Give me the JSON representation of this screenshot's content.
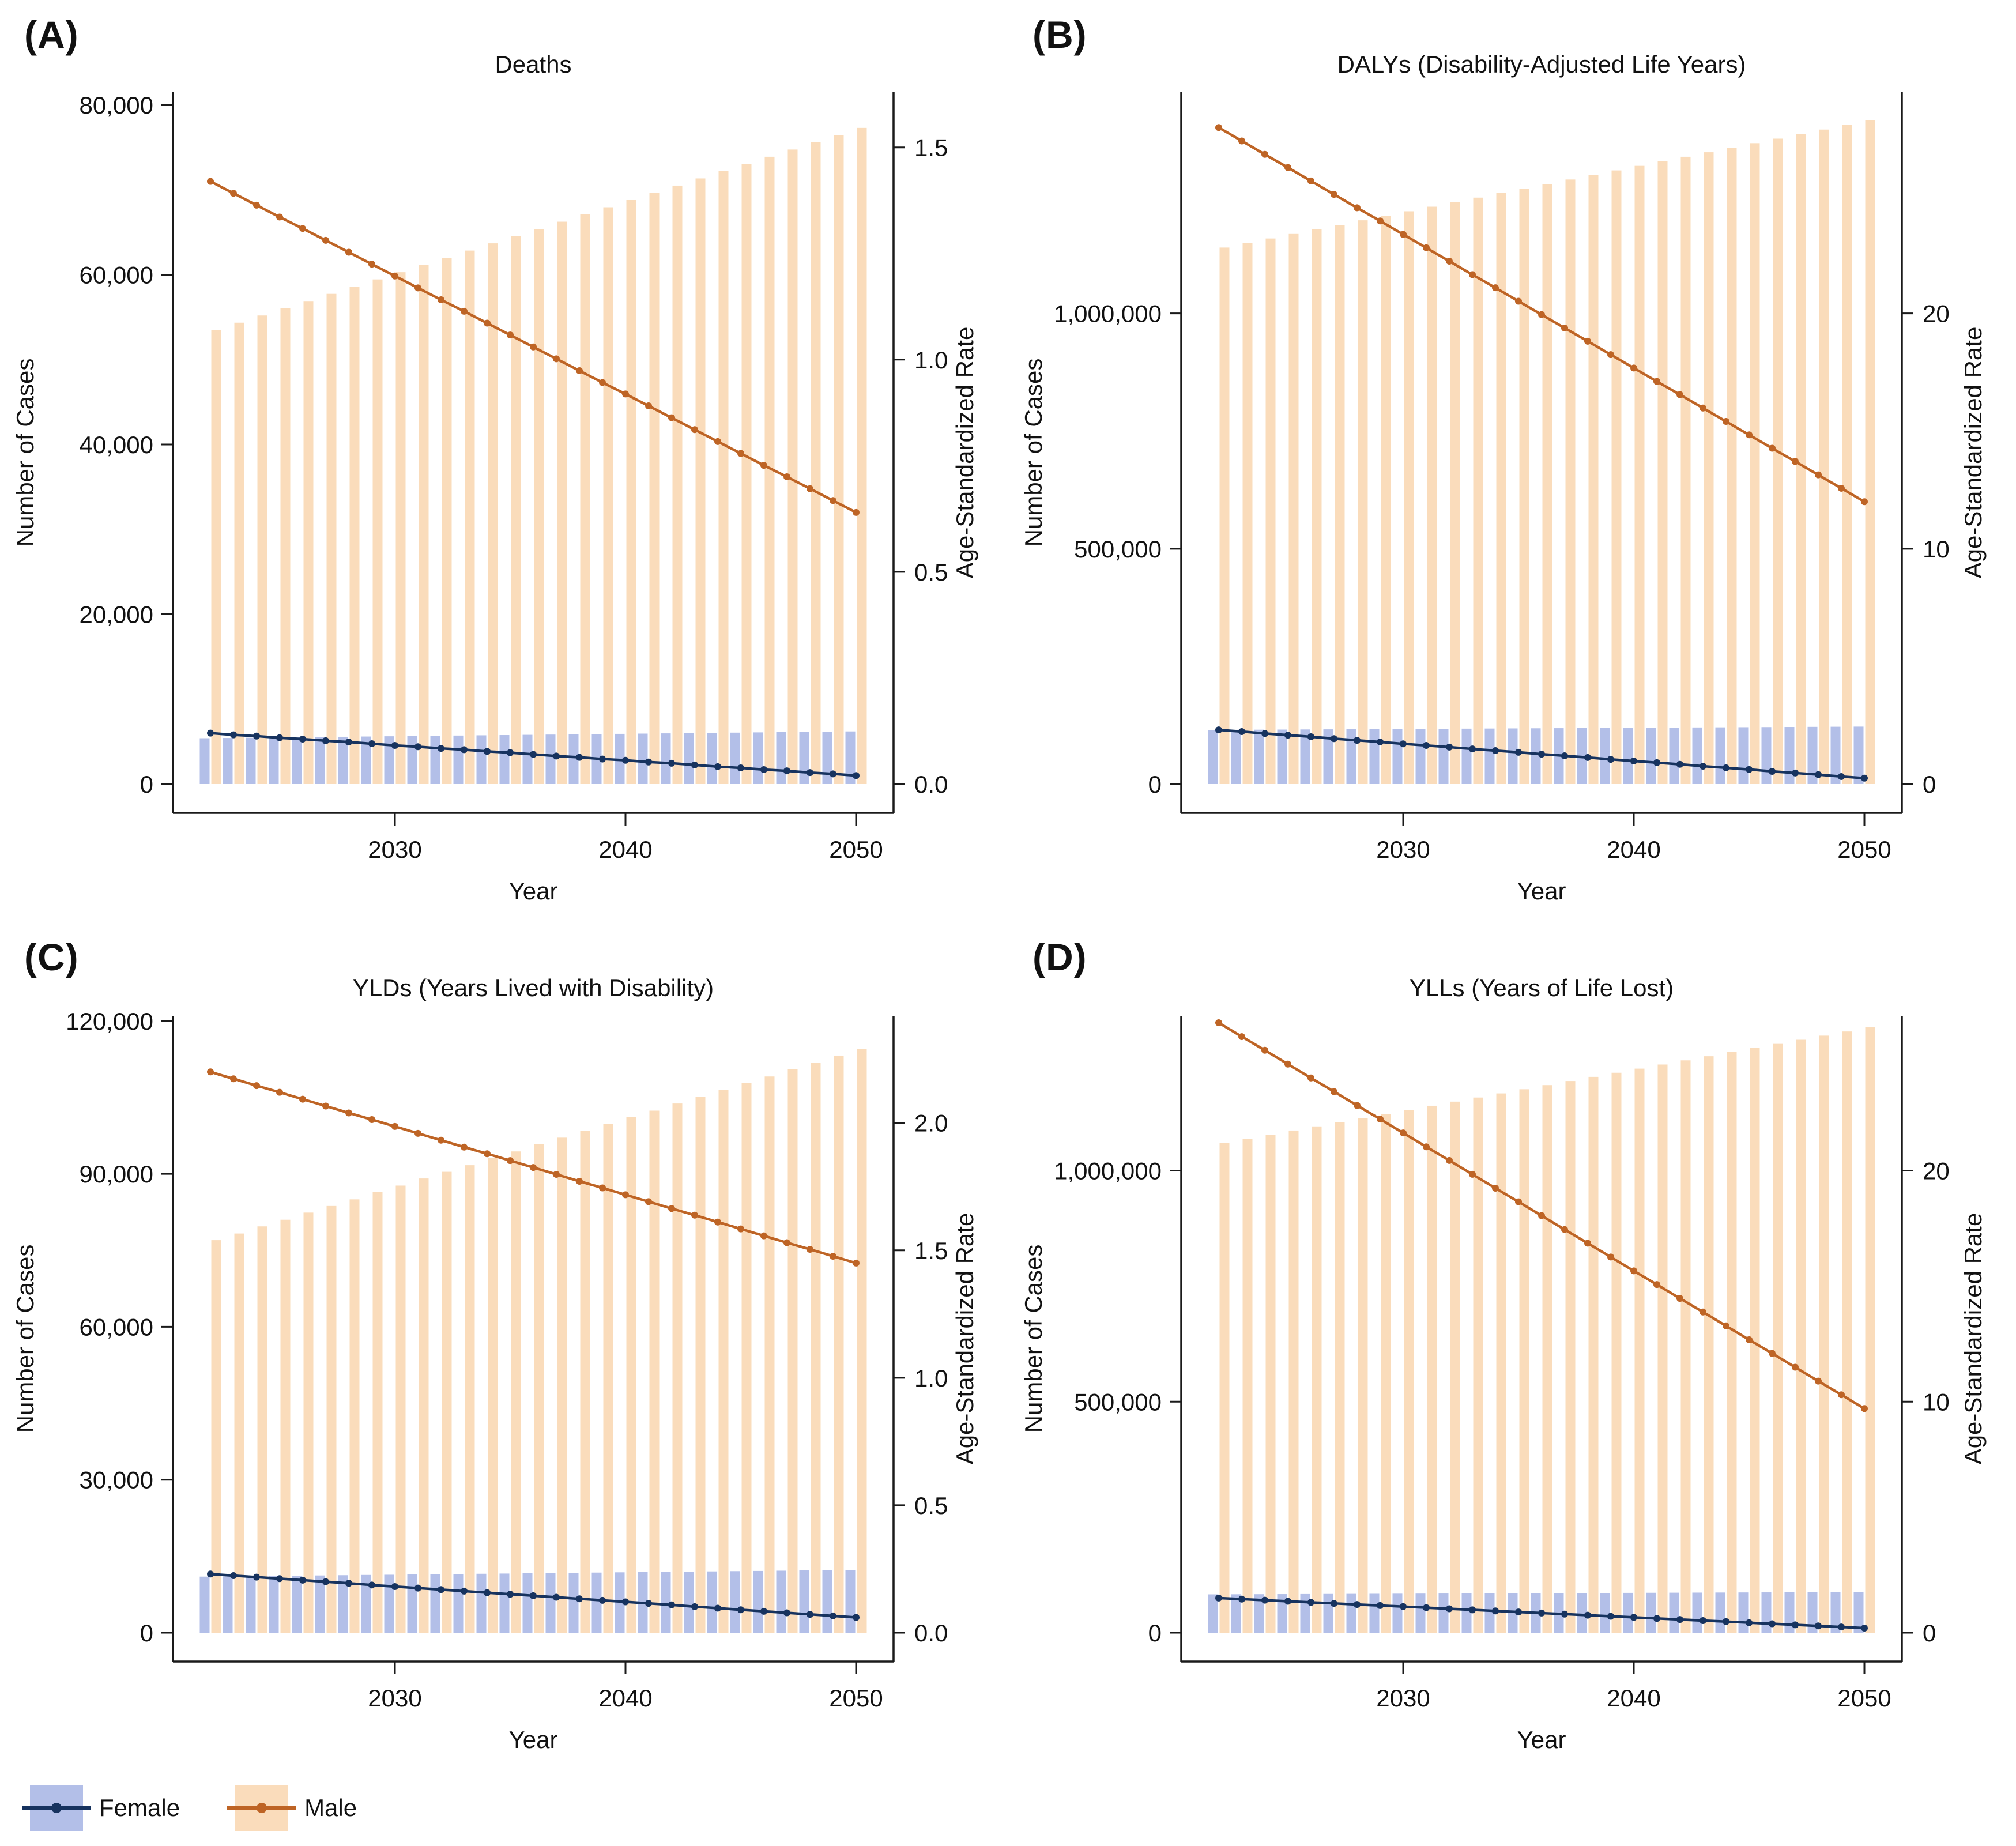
{
  "colors": {
    "female_bar": "#b3bfe8",
    "male_bar": "#fadcbb",
    "female_line": "#17335f",
    "male_line": "#be6425",
    "axis": "#1a1a1a",
    "background": "#ffffff"
  },
  "legend": {
    "items": [
      {
        "label": "Female",
        "box_color": "#b3bfe8",
        "line_color": "#17335f"
      },
      {
        "label": "Male",
        "box_color": "#fadcbb",
        "line_color": "#be6425"
      }
    ]
  },
  "chart_data": [
    {
      "id": "deaths",
      "label": "(A)",
      "title": "Deaths",
      "type": "bar+line-dual-axis",
      "xlabel": "Year",
      "ylabel_left": "Number of Cases",
      "ylabel_right": "Age-Standardized Rate",
      "legend_position": "bottom-left",
      "grid": false,
      "years": [
        2022,
        2023,
        2024,
        2025,
        2026,
        2027,
        2028,
        2029,
        2030,
        2031,
        2032,
        2033,
        2034,
        2035,
        2036,
        2037,
        2038,
        2039,
        2040,
        2041,
        2042,
        2043,
        2044,
        2045,
        2046,
        2047,
        2048,
        2049,
        2050
      ],
      "bars": {
        "axis": "left",
        "series": [
          {
            "name": "Female",
            "values": [
              5400,
              5429,
              5457,
              5486,
              5514,
              5543,
              5571,
              5600,
              5629,
              5657,
              5686,
              5714,
              5743,
              5771,
              5800,
              5829,
              5857,
              5886,
              5914,
              5943,
              5971,
              6000,
              6029,
              6057,
              6086,
              6114,
              6143,
              6171,
              6200
            ]
          },
          {
            "name": "Male",
            "values": [
              53500,
              54350,
              55200,
              56050,
              56900,
              57750,
              58600,
              59450,
              60300,
              61150,
              62000,
              62850,
              63700,
              64550,
              65400,
              66250,
              67100,
              67950,
              68800,
              69650,
              70500,
              71350,
              72200,
              73050,
              73900,
              74750,
              75600,
              76450,
              77300
            ]
          }
        ]
      },
      "lines": {
        "axis": "right",
        "series": [
          {
            "name": "Female",
            "values": [
              0.12,
              0.116,
              0.113,
              0.109,
              0.106,
              0.102,
              0.099,
              0.095,
              0.091,
              0.088,
              0.084,
              0.081,
              0.077,
              0.074,
              0.07,
              0.066,
              0.063,
              0.059,
              0.056,
              0.052,
              0.049,
              0.045,
              0.041,
              0.038,
              0.034,
              0.031,
              0.027,
              0.024,
              0.02
            ]
          },
          {
            "name": "Male",
            "values": [
              1.42,
              1.392,
              1.364,
              1.336,
              1.309,
              1.281,
              1.253,
              1.225,
              1.197,
              1.169,
              1.141,
              1.114,
              1.086,
              1.058,
              1.03,
              1.002,
              0.974,
              0.946,
              0.919,
              0.891,
              0.863,
              0.835,
              0.807,
              0.779,
              0.751,
              0.724,
              0.696,
              0.668,
              0.64
            ]
          }
        ]
      },
      "axis_left": {
        "ticks": [
          0,
          20000,
          40000,
          60000,
          80000
        ],
        "labels": [
          "0",
          "20,000",
          "40,000",
          "60,000",
          "80,000"
        ],
        "scale_top": 81500
      },
      "axis_right": {
        "ticks": [
          0,
          0.5,
          1.0,
          1.5
        ],
        "labels": [
          "0.0",
          "0.5",
          "1.0",
          "1.5"
        ],
        "scale_top": 1.63
      },
      "axis_x": {
        "ticks": [
          2030,
          2040,
          2050
        ],
        "labels": [
          "2030",
          "2040",
          "2050"
        ]
      }
    },
    {
      "id": "dalys",
      "label": "(B)",
      "title": "DALYs (Disability-Adjusted Life Years)",
      "type": "bar+line-dual-axis",
      "xlabel": "Year",
      "ylabel_left": "Number of Cases",
      "ylabel_right": "Age-Standardized Rate",
      "legend_position": "bottom-left",
      "grid": false,
      "years": [
        2022,
        2023,
        2024,
        2025,
        2026,
        2027,
        2028,
        2029,
        2030,
        2031,
        2032,
        2033,
        2034,
        2035,
        2036,
        2037,
        2038,
        2039,
        2040,
        2041,
        2042,
        2043,
        2044,
        2045,
        2046,
        2047,
        2048,
        2049,
        2050
      ],
      "bars": {
        "axis": "left",
        "series": [
          {
            "name": "Female",
            "values": [
              115000,
              115250,
              115500,
              115750,
              116000,
              116250,
              116500,
              116750,
              117000,
              117250,
              117500,
              117750,
              118000,
              118250,
              118500,
              118750,
              119000,
              119250,
              119500,
              119750,
              120000,
              120250,
              120500,
              120750,
              121000,
              121250,
              121500,
              121750,
              122000
            ]
          },
          {
            "name": "Male",
            "values": [
              1140000,
              1149600,
              1159300,
              1168900,
              1178600,
              1188200,
              1197900,
              1207500,
              1217100,
              1226800,
              1236400,
              1246100,
              1255700,
              1265400,
              1275000,
              1284600,
              1294300,
              1303900,
              1313600,
              1323200,
              1332900,
              1342500,
              1352100,
              1361800,
              1371400,
              1381100,
              1390700,
              1400400,
              1410000
            ]
          }
        ]
      },
      "lines": {
        "axis": "right",
        "series": [
          {
            "name": "Female",
            "values": [
              2.3,
              2.23,
              2.15,
              2.08,
              2.01,
              1.93,
              1.86,
              1.79,
              1.71,
              1.64,
              1.57,
              1.49,
              1.42,
              1.35,
              1.27,
              1.2,
              1.13,
              1.05,
              0.98,
              0.91,
              0.84,
              0.76,
              0.69,
              0.62,
              0.54,
              0.47,
              0.4,
              0.32,
              0.25
            ]
          },
          {
            "name": "Male",
            "values": [
              27.9,
              27.33,
              26.76,
              26.2,
              25.63,
              25.06,
              24.49,
              23.93,
              23.36,
              22.79,
              22.22,
              21.65,
              21.09,
              20.52,
              19.95,
              19.38,
              18.82,
              18.25,
              17.68,
              17.11,
              16.55,
              15.98,
              15.41,
              14.84,
              14.27,
              13.71,
              13.14,
              12.57,
              12.0
            ]
          }
        ]
      },
      "axis_left": {
        "ticks": [
          0,
          500000,
          1000000
        ],
        "labels": [
          "0",
          "500,000",
          "1,000,000"
        ],
        "scale_top": 1470000
      },
      "axis_right": {
        "ticks": [
          0,
          10,
          20
        ],
        "labels": [
          "0",
          "10",
          "20"
        ],
        "scale_top": 29.4
      },
      "axis_x": {
        "ticks": [
          2030,
          2040,
          2050
        ],
        "labels": [
          "2030",
          "2040",
          "2050"
        ]
      }
    },
    {
      "id": "ylds",
      "label": "(C)",
      "title": "YLDs (Years Lived with Disability)",
      "type": "bar+line-dual-axis",
      "xlabel": "Year",
      "ylabel_left": "Number of Cases",
      "ylabel_right": "Age-Standardized Rate",
      "legend_position": "bottom-left",
      "grid": false,
      "years": [
        2022,
        2023,
        2024,
        2025,
        2026,
        2027,
        2028,
        2029,
        2030,
        2031,
        2032,
        2033,
        2034,
        2035,
        2036,
        2037,
        2038,
        2039,
        2040,
        2041,
        2042,
        2043,
        2044,
        2045,
        2046,
        2047,
        2048,
        2049,
        2050
      ],
      "bars": {
        "axis": "left",
        "series": [
          {
            "name": "Female",
            "values": [
              11000,
              11050,
              11090,
              11140,
              11190,
              11230,
              11280,
              11330,
              11370,
              11420,
              11460,
              11510,
              11560,
              11600,
              11650,
              11700,
              11740,
              11790,
              11840,
              11880,
              11930,
              11980,
              12020,
              12070,
              12110,
              12160,
              12210,
              12250,
              12300
            ]
          },
          {
            "name": "Male",
            "values": [
              77000,
              78300,
              79700,
              81000,
              82400,
              83700,
              85000,
              86400,
              87700,
              89100,
              90400,
              91700,
              93100,
              94400,
              95800,
              97100,
              98400,
              99800,
              101100,
              102400,
              103800,
              105100,
              106500,
              107800,
              109100,
              110500,
              111800,
              113200,
              114500
            ]
          }
        ]
      },
      "lines": {
        "axis": "right",
        "series": [
          {
            "name": "Female",
            "values": [
              0.23,
              0.224,
              0.218,
              0.212,
              0.206,
              0.2,
              0.194,
              0.187,
              0.181,
              0.175,
              0.169,
              0.163,
              0.157,
              0.151,
              0.145,
              0.139,
              0.133,
              0.127,
              0.121,
              0.115,
              0.109,
              0.102,
              0.096,
              0.09,
              0.084,
              0.078,
              0.072,
              0.066,
              0.06
            ]
          },
          {
            "name": "Male",
            "values": [
              2.2,
              2.173,
              2.146,
              2.12,
              2.093,
              2.066,
              2.039,
              2.013,
              1.986,
              1.959,
              1.932,
              1.905,
              1.879,
              1.852,
              1.825,
              1.798,
              1.771,
              1.745,
              1.718,
              1.691,
              1.664,
              1.638,
              1.611,
              1.584,
              1.557,
              1.53,
              1.504,
              1.477,
              1.45
            ]
          }
        ]
      },
      "axis_left": {
        "ticks": [
          0,
          30000,
          60000,
          90000,
          120000
        ],
        "labels": [
          "0",
          "30,000",
          "60,000",
          "90,000",
          "120,000"
        ],
        "scale_top": 121000
      },
      "axis_right": {
        "ticks": [
          0,
          0.5,
          1.0,
          1.5,
          2.0
        ],
        "labels": [
          "0.0",
          "0.5",
          "1.0",
          "1.5",
          "2.0"
        ],
        "scale_top": 2.42
      },
      "axis_x": {
        "ticks": [
          2030,
          2040,
          2050
        ],
        "labels": [
          "2030",
          "2040",
          "2050"
        ]
      }
    },
    {
      "id": "ylls",
      "label": "(D)",
      "title": "YLLs (Years of Life Lost)",
      "type": "bar+line-dual-axis",
      "xlabel": "Year",
      "ylabel_left": "Number of Cases",
      "ylabel_right": "Age-Standardized Rate",
      "legend_position": "bottom-left",
      "grid": false,
      "years": [
        2022,
        2023,
        2024,
        2025,
        2026,
        2027,
        2028,
        2029,
        2030,
        2031,
        2032,
        2033,
        2034,
        2035,
        2036,
        2037,
        2038,
        2039,
        2040,
        2041,
        2042,
        2043,
        2044,
        2045,
        2046,
        2047,
        2048,
        2049,
        2050
      ],
      "bars": {
        "axis": "left",
        "series": [
          {
            "name": "Female",
            "values": [
              83000,
              83180,
              83360,
              83540,
              83710,
              83890,
              84070,
              84250,
              84430,
              84610,
              84790,
              84960,
              85140,
              85320,
              85500,
              85680,
              85860,
              86040,
              86210,
              86390,
              86570,
              86750,
              86930,
              87110,
              87290,
              87460,
              87640,
              87820,
              88000
            ]
          },
          {
            "name": "Male",
            "values": [
              1060000,
              1068900,
              1077900,
              1086800,
              1095700,
              1104600,
              1113600,
              1122500,
              1131400,
              1140400,
              1149300,
              1158200,
              1167100,
              1176100,
              1185000,
              1193900,
              1202900,
              1211800,
              1220700,
              1229600,
              1238600,
              1247500,
              1256400,
              1265400,
              1274300,
              1283200,
              1292100,
              1301100,
              1310000
            ]
          }
        ]
      },
      "lines": {
        "axis": "right",
        "series": [
          {
            "name": "Female",
            "values": [
              1.5,
              1.454,
              1.407,
              1.361,
              1.314,
              1.268,
              1.221,
              1.175,
              1.129,
              1.082,
              1.036,
              0.989,
              0.943,
              0.896,
              0.85,
              0.804,
              0.757,
              0.711,
              0.664,
              0.618,
              0.571,
              0.525,
              0.479,
              0.432,
              0.386,
              0.339,
              0.293,
              0.246,
              0.2
            ]
          },
          {
            "name": "Male",
            "values": [
              26.4,
              25.8,
              25.21,
              24.61,
              24.01,
              23.42,
              22.82,
              22.23,
              21.63,
              21.03,
              20.44,
              19.84,
              19.24,
              18.65,
              18.05,
              17.45,
              16.86,
              16.26,
              15.66,
              15.07,
              14.47,
              13.88,
              13.28,
              12.68,
              12.09,
              11.49,
              10.89,
              10.3,
              9.7
            ]
          }
        ]
      },
      "axis_left": {
        "ticks": [
          0,
          500000,
          1000000
        ],
        "labels": [
          "0",
          "500,000",
          "1,000,000"
        ],
        "scale_top": 1335000
      },
      "axis_right": {
        "ticks": [
          0,
          10,
          20
        ],
        "labels": [
          "0",
          "10",
          "20"
        ],
        "scale_top": 26.7
      },
      "axis_x": {
        "ticks": [
          2030,
          2040,
          2050
        ],
        "labels": [
          "2030",
          "2040",
          "2050"
        ]
      }
    }
  ]
}
